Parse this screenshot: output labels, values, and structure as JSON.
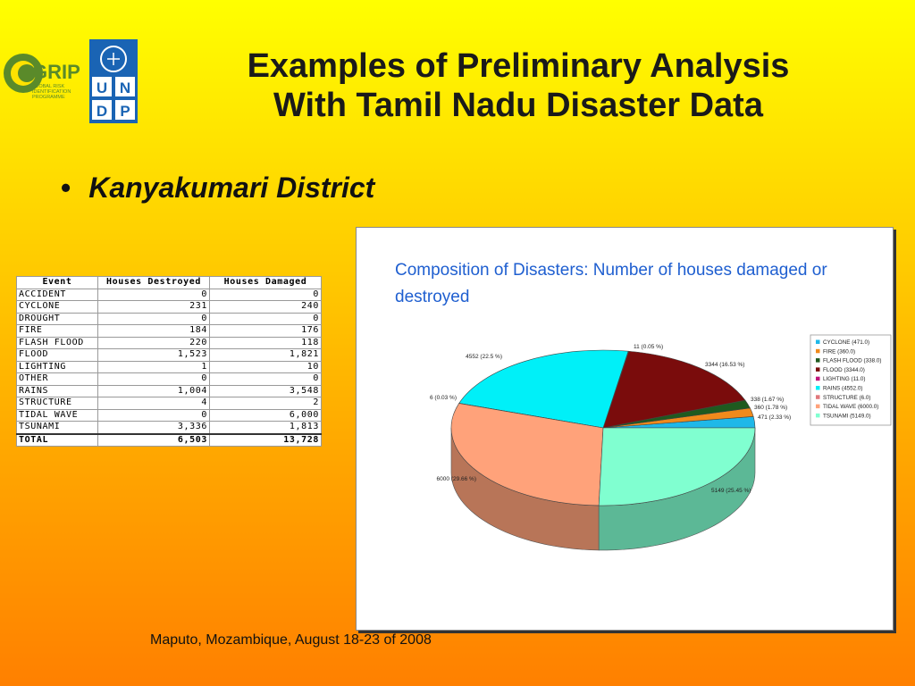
{
  "title_line1": "Examples of Preliminary Analysis",
  "title_line2": "With Tamil Nadu Disaster Data",
  "bullet_text": "Kanyakumari District",
  "bullet_marker": "•",
  "logos": {
    "grip_text": "GRIP",
    "grip_sub1": "GLOBAL RISK",
    "grip_sub2": "IDENTIFICATION",
    "grip_sub3": "PROGRAMME",
    "undp_letters": [
      "U",
      "N",
      "D",
      "P"
    ]
  },
  "table": {
    "headers": [
      "Event",
      "Houses Destroyed",
      "Houses Damaged"
    ],
    "rows": [
      [
        "ACCIDENT",
        "0",
        "0"
      ],
      [
        "CYCLONE",
        "231",
        "240"
      ],
      [
        "DROUGHT",
        "0",
        "0"
      ],
      [
        "FIRE",
        "184",
        "176"
      ],
      [
        "FLASH FLOOD",
        "220",
        "118"
      ],
      [
        "FLOOD",
        "1,523",
        "1,821"
      ],
      [
        "LIGHTING",
        "1",
        "10"
      ],
      [
        "OTHER",
        "0",
        "0"
      ],
      [
        "RAINS",
        "1,004",
        "3,548"
      ],
      [
        "STRUCTURE",
        "4",
        "2"
      ],
      [
        "TIDAL WAVE",
        "0",
        "6,000"
      ],
      [
        "TSUNAMI",
        "3,336",
        "1,813"
      ]
    ],
    "total": [
      "TOTAL",
      "6,503",
      "13,728"
    ]
  },
  "chart_data": {
    "type": "pie",
    "title": "Composition of Disasters: Number of houses damaged or destroyed",
    "slices": [
      {
        "name": "CYCLONE",
        "value": 471.0,
        "legend": "CYCLONE (471.0)",
        "label": "471 (2.33 %)",
        "color": "#1fb8e8"
      },
      {
        "name": "FIRE",
        "value": 360.0,
        "legend": "FIRE (360.0)",
        "label": "360 (1.78 %)",
        "color": "#f08a1c"
      },
      {
        "name": "FLASH FLOOD",
        "value": 338.0,
        "legend": "FLASH FLOOD (338.0)",
        "label": "338 (1.67 %)",
        "color": "#1f5a1f"
      },
      {
        "name": "FLOOD",
        "value": 3344.0,
        "legend": "FLOOD (3344.0)",
        "label": "3344 (16.53 %)",
        "color": "#7a0c0c"
      },
      {
        "name": "LIGHTING",
        "value": 11.0,
        "legend": "LIGHTING (11.0)",
        "label": "11 (0.05 %)",
        "color": "#c0177c"
      },
      {
        "name": "RAINS",
        "value": 4552.0,
        "legend": "RAINS (4552.0)",
        "label": "4552 (22.5 %)",
        "color": "#00f0f8"
      },
      {
        "name": "STRUCTURE",
        "value": 6.0,
        "legend": "STRUCTURE (6.0)",
        "label": "6 (0.03 %)",
        "color": "#e0787c"
      },
      {
        "name": "TIDAL WAVE",
        "value": 6000.0,
        "legend": "TIDAL WAVE (6000.0)",
        "label": "6000 (29.66 %)",
        "color": "#ffa27a"
      },
      {
        "name": "TSUNAMI",
        "value": 5149.0,
        "legend": "TSUNAMI (5149.0)",
        "label": "5149 (25.45 %)",
        "color": "#80ffd0"
      }
    ],
    "legend_position": "right"
  },
  "footer": "Maputo, Mozambique, August 18-23 of 2008"
}
